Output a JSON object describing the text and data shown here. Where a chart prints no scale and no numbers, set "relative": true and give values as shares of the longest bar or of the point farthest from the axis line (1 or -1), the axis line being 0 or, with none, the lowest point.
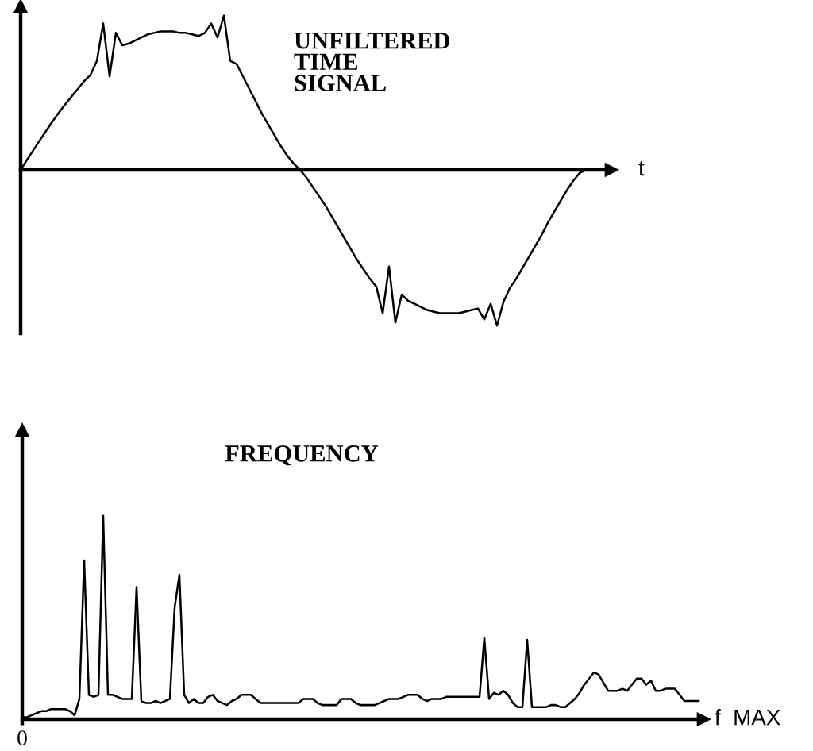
{
  "chart_data": [
    {
      "type": "line",
      "title": "UNFILTERED\nTIME\nSIGNAL",
      "xlabel": "t",
      "relative": true,
      "categories": [
        null,
        null,
        null,
        null,
        null,
        null,
        null,
        null,
        null,
        null,
        null,
        null,
        null,
        null,
        null,
        null,
        null,
        null,
        null,
        null,
        null,
        null,
        null,
        null,
        null,
        null,
        null,
        null,
        null,
        null,
        null,
        null,
        null,
        null,
        null,
        null,
        null,
        null,
        null,
        null,
        null,
        null,
        null,
        null,
        null,
        null,
        null,
        null,
        null,
        null,
        null,
        null,
        null,
        null,
        null,
        null,
        null,
        null,
        null,
        null,
        null,
        null,
        null,
        null,
        null,
        null,
        null,
        null,
        null,
        null,
        null,
        null,
        null,
        null,
        null,
        null,
        null,
        null,
        null,
        null,
        null,
        null,
        null,
        null,
        null,
        null,
        null,
        null,
        null,
        null
      ],
      "series": [
        {
          "color": "#000000",
          "values": [
            0,
            0.064,
            0.127,
            0.189,
            0.25,
            0.31,
            0.367,
            0.42,
            0.47,
            0.52,
            0.57,
            0.61,
            0.7,
            0.94,
            0.6,
            0.88,
            0.8,
            0.81,
            0.83,
            0.85,
            0.87,
            0.88,
            0.89,
            0.89,
            0.89,
            0.88,
            0.88,
            0.87,
            0.86,
            0.88,
            0.94,
            0.85,
            0.99,
            0.7,
            0.68,
            0.6,
            0.52,
            0.44,
            0.36,
            0.29,
            0.22,
            0.15,
            0.09,
            0.04,
            0,
            -0.05,
            -0.11,
            -0.17,
            -0.23,
            -0.3,
            -0.37,
            -0.44,
            -0.51,
            -0.58,
            -0.64,
            -0.7,
            -0.75,
            -0.92,
            -0.62,
            -0.98,
            -0.8,
            -0.84,
            -0.86,
            -0.88,
            -0.9,
            -0.91,
            -0.92,
            -0.92,
            -0.92,
            -0.92,
            -0.91,
            -0.9,
            -0.89,
            -0.96,
            -0.86,
            -1.0,
            -0.85,
            -0.76,
            -0.7,
            -0.63,
            -0.56,
            -0.49,
            -0.42,
            -0.34,
            -0.27,
            -0.2,
            -0.13,
            -0.07,
            -0.02,
            0
          ]
        }
      ]
    },
    {
      "type": "line",
      "title": "FREQUENCY",
      "xlabel": "f  MAX",
      "relative": true,
      "annotations": [
        "0"
      ],
      "categories": [
        null,
        null,
        null,
        null,
        null,
        null,
        null,
        null,
        null,
        null,
        null,
        null,
        null,
        null,
        null,
        null,
        null,
        null,
        null,
        null,
        null,
        null,
        null,
        null,
        null,
        null,
        null,
        null,
        null,
        null,
        null,
        null,
        null,
        null,
        null,
        null,
        null,
        null,
        null,
        null,
        null,
        null,
        null,
        null,
        null,
        null,
        null,
        null,
        null,
        null,
        null,
        null,
        null,
        null,
        null,
        null,
        null,
        null,
        null,
        null,
        null,
        null,
        null,
        null,
        null,
        null,
        null,
        null,
        null,
        null,
        null,
        null,
        null,
        null,
        null,
        null,
        null,
        null,
        null,
        null,
        null,
        null,
        null,
        null,
        null,
        null,
        null,
        null,
        null,
        null,
        null,
        null,
        null,
        null,
        null,
        null,
        null,
        null,
        null,
        null,
        null,
        null,
        null,
        null,
        null,
        null,
        null,
        null,
        null,
        null,
        null,
        null,
        null,
        null,
        null,
        null,
        null,
        null,
        null,
        null,
        null,
        null,
        null,
        null,
        null,
        null,
        null,
        null,
        null,
        null,
        null,
        null,
        null,
        null,
        null,
        null,
        null,
        null,
        null,
        null,
        null,
        null,
        null
      ],
      "series": [
        {
          "color": "#000000",
          "values": [
            0.01,
            0.01,
            0.02,
            0.03,
            0.04,
            0.04,
            0.05,
            0.05,
            0.05,
            0.05,
            0.04,
            0.02,
            0.1,
            0.78,
            0.12,
            0.11,
            0.12,
            1.0,
            0.12,
            0.12,
            0.11,
            0.1,
            0.1,
            0.1,
            0.65,
            0.09,
            0.08,
            0.08,
            0.09,
            0.08,
            0.09,
            0.1,
            0.55,
            0.71,
            0.12,
            0.08,
            0.1,
            0.08,
            0.08,
            0.11,
            0.12,
            0.09,
            0.08,
            0.07,
            0.09,
            0.1,
            0.12,
            0.12,
            0.12,
            0.1,
            0.08,
            0.08,
            0.08,
            0.08,
            0.08,
            0.08,
            0.08,
            0.08,
            0.08,
            0.1,
            0.1,
            0.1,
            0.08,
            0.07,
            0.07,
            0.07,
            0.07,
            0.1,
            0.1,
            0.1,
            0.08,
            0.07,
            0.07,
            0.07,
            0.07,
            0.08,
            0.09,
            0.1,
            0.1,
            0.1,
            0.11,
            0.12,
            0.12,
            0.12,
            0.1,
            0.09,
            0.1,
            0.1,
            0.1,
            0.11,
            0.11,
            0.11,
            0.11,
            0.11,
            0.11,
            0.11,
            0.11,
            0.4,
            0.1,
            0.13,
            0.12,
            0.14,
            0.12,
            0.08,
            0.06,
            0.06,
            0.39,
            0.06,
            0.06,
            0.06,
            0.06,
            0.07,
            0.07,
            0.06,
            0.06,
            0.08,
            0.1,
            0.13,
            0.17,
            0.2,
            0.23,
            0.22,
            0.18,
            0.14,
            0.14,
            0.14,
            0.15,
            0.14,
            0.17,
            0.2,
            0.2,
            0.17,
            0.19,
            0.14,
            0.14,
            0.15,
            0.15,
            0.15,
            0.12,
            0.09,
            0.09,
            0.09,
            0.09
          ]
        }
      ]
    }
  ]
}
